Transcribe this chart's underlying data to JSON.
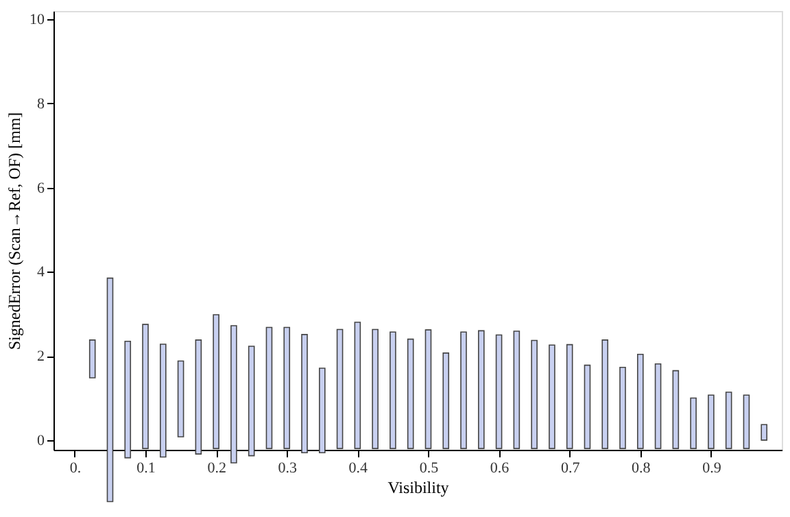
{
  "chart_data": {
    "type": "bar",
    "xlabel": "Visibility",
    "ylabel": "SignedError (Scan→Ref, OF) [mm]",
    "x": [
      0.025,
      0.05,
      0.075,
      0.1,
      0.125,
      0.15,
      0.175,
      0.2,
      0.225,
      0.25,
      0.275,
      0.3,
      0.325,
      0.35,
      0.375,
      0.4,
      0.425,
      0.45,
      0.475,
      0.5,
      0.525,
      0.55,
      0.575,
      0.6,
      0.625,
      0.65,
      0.675,
      0.7,
      0.725,
      0.75,
      0.775,
      0.8,
      0.825,
      0.85,
      0.875,
      0.9,
      0.925,
      0.95,
      0.975
    ],
    "base": [
      1.48,
      -1.46,
      -0.42,
      -0.2,
      -0.4,
      0.08,
      -0.33,
      -0.2,
      -0.54,
      -0.37,
      -0.2,
      -0.2,
      -0.3,
      -0.3,
      -0.2,
      -0.2,
      -0.2,
      -0.2,
      -0.2,
      -0.2,
      -0.2,
      -0.2,
      -0.2,
      -0.2,
      -0.2,
      -0.2,
      -0.2,
      -0.2,
      -0.2,
      -0.2,
      -0.2,
      -0.2,
      -0.2,
      -0.2,
      -0.2,
      -0.2,
      -0.2,
      -0.2,
      0
    ],
    "values": [
      0.9,
      5.31,
      2.77,
      2.95,
      2.68,
      1.8,
      2.71,
      3.18,
      3.26,
      2.6,
      2.88,
      2.88,
      2.81,
      2.01,
      2.83,
      3.0,
      2.83,
      2.77,
      2.6,
      2.82,
      2.27,
      2.77,
      2.8,
      2.7,
      2.79,
      2.57,
      2.46,
      2.47,
      1.98,
      2.58,
      1.93,
      2.24,
      2.01,
      1.85,
      1.2,
      1.27,
      1.34,
      1.27,
      0.37
    ],
    "color": "#c8d0f0",
    "xlim": [
      -0.03,
      1.0
    ],
    "ylim": [
      -0.23,
      10.2
    ],
    "xticks": [
      {
        "value": 0,
        "label": "0."
      },
      0.1,
      0.2,
      0.3,
      0.4,
      0.5,
      0.6,
      0.7,
      0.8,
      0.9
    ],
    "yticks": [
      0,
      2,
      4,
      6,
      8,
      10
    ],
    "grid": false
  }
}
